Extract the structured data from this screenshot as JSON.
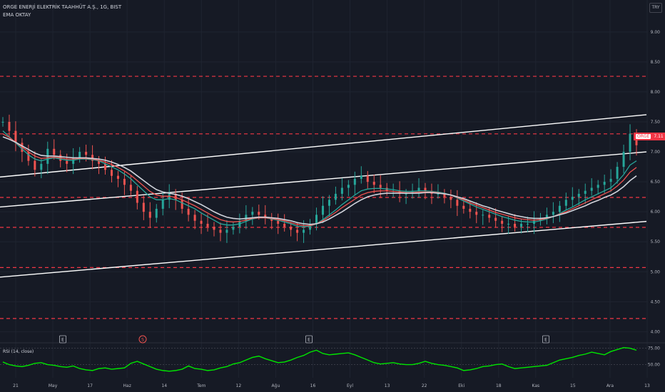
{
  "header": {
    "title": "ORGE ENERJİ ELEKTRİK TAAHHÜT A.Ş., 1G, BIST",
    "indicator": "EMA OKTAY",
    "currency": "TRY"
  },
  "price_tag": {
    "symbol": "ORGE",
    "value": "7.11"
  },
  "rsi": {
    "label": "RSI (14, close)"
  },
  "events": [
    {
      "label": "E",
      "type": "earnings",
      "x": "Mayıs"
    },
    {
      "label": "S",
      "type": "split",
      "x": "Haz-10"
    },
    {
      "label": "E",
      "type": "earnings",
      "x": "Ağu-10"
    },
    {
      "label": "E",
      "type": "earnings",
      "x": "Kas-06"
    }
  ],
  "colors": {
    "background": "#161a25",
    "grid": "#1f2430",
    "up": "#26a69a",
    "down": "#ef5350",
    "level_line": "#f23645",
    "channel": "#ffffff",
    "ema_fast": "#26a69a",
    "ema_mid": "#ef5350",
    "ema_slow": "#d1d4dc",
    "rsi": "#00e600",
    "text": "#b2b5be"
  },
  "chart_data": [
    {
      "type": "line",
      "title": "ORGE ENERJİ ELEKTRİK TAAHHÜT A.Ş., 1G, BIST",
      "xlabel": "",
      "ylabel": "",
      "x_ticks": [
        "21",
        "May",
        "17",
        "Haz",
        "14",
        "Tem",
        "12",
        "Ağu",
        "16",
        "Eyl",
        "13",
        "22",
        "Eki",
        "18",
        "Kas",
        "15",
        "Ara",
        "13"
      ],
      "y_ticks": [
        "9.00",
        "8.50",
        "8.00",
        "7.50",
        "7.00",
        "6.50",
        "6.00",
        "5.50",
        "5.00",
        "4.50",
        "4.00"
      ],
      "ylim": [
        3.85,
        9.2
      ],
      "close": [
        7.5,
        7.35,
        7.15,
        7.0,
        6.85,
        6.7,
        6.8,
        7.05,
        6.95,
        6.85,
        6.8,
        6.9,
        7.0,
        6.95,
        6.85,
        6.8,
        6.7,
        6.6,
        6.55,
        6.45,
        6.35,
        6.15,
        6.0,
        5.9,
        6.05,
        6.2,
        6.3,
        6.2,
        6.05,
        5.95,
        5.85,
        5.8,
        5.75,
        5.7,
        5.65,
        5.7,
        5.75,
        5.85,
        5.95,
        6.0,
        5.95,
        5.9,
        5.85,
        5.8,
        5.75,
        5.7,
        5.65,
        5.7,
        5.8,
        5.95,
        6.1,
        6.2,
        6.3,
        6.4,
        6.45,
        6.55,
        6.6,
        6.5,
        6.45,
        6.4,
        6.35,
        6.35,
        6.3,
        6.3,
        6.35,
        6.4,
        6.35,
        6.3,
        6.3,
        6.25,
        6.2,
        6.1,
        6.05,
        6.0,
        5.95,
        5.95,
        5.9,
        5.85,
        5.8,
        5.8,
        5.75,
        5.8,
        5.8,
        5.85,
        5.9,
        5.95,
        6.0,
        6.1,
        6.2,
        6.25,
        6.3,
        6.35,
        6.4,
        6.45,
        6.5,
        6.55,
        6.75,
        7.0,
        7.3,
        7.11
      ],
      "series": [
        {
          "name": "EMA fast",
          "color": "#26a69a",
          "values": [
            7.35,
            7.25,
            7.15,
            7.05,
            6.95,
            6.88,
            6.85,
            6.88,
            6.9,
            6.88,
            6.86,
            6.86,
            6.88,
            6.88,
            6.87,
            6.85,
            6.8,
            6.75,
            6.7,
            6.63,
            6.55,
            6.45,
            6.35,
            6.25,
            6.2,
            6.2,
            6.22,
            6.2,
            6.15,
            6.1,
            6.05,
            5.98,
            5.92,
            5.86,
            5.8,
            5.78,
            5.78,
            5.8,
            5.84,
            5.88,
            5.9,
            5.9,
            5.88,
            5.86,
            5.83,
            5.8,
            5.76,
            5.75,
            5.76,
            5.8,
            5.87,
            5.95,
            6.03,
            6.12,
            6.2,
            6.28,
            6.35,
            6.38,
            6.39,
            6.39,
            6.38,
            6.37,
            6.35,
            6.34,
            6.34,
            6.35,
            6.35,
            6.34,
            6.33,
            6.31,
            6.28,
            6.23,
            6.18,
            6.13,
            6.08,
            6.04,
            6.0,
            5.96,
            5.92,
            5.89,
            5.86,
            5.84,
            5.83,
            5.83,
            5.85,
            5.88,
            5.92,
            5.97,
            6.03,
            6.08,
            6.14,
            6.2,
            6.25,
            6.3,
            6.35,
            6.4,
            6.5,
            6.62,
            6.78,
            6.85
          ]
        },
        {
          "name": "EMA mid",
          "color": "#ef5350",
          "values": [
            7.3,
            7.24,
            7.16,
            7.08,
            7.0,
            6.93,
            6.89,
            6.9,
            6.91,
            6.9,
            6.88,
            6.88,
            6.89,
            6.89,
            6.88,
            6.86,
            6.83,
            6.79,
            6.74,
            6.68,
            6.61,
            6.52,
            6.43,
            6.34,
            6.28,
            6.26,
            6.26,
            6.24,
            6.2,
            6.15,
            6.1,
            6.04,
            5.98,
            5.92,
            5.87,
            5.84,
            5.83,
            5.84,
            5.86,
            5.89,
            5.9,
            5.9,
            5.89,
            5.87,
            5.85,
            5.82,
            5.79,
            5.77,
            5.77,
            5.8,
            5.85,
            5.92,
            5.99,
            6.07,
            6.14,
            6.21,
            6.28,
            6.32,
            6.34,
            6.35,
            6.35,
            6.34,
            6.33,
            6.32,
            6.32,
            6.33,
            6.33,
            6.33,
            6.32,
            6.3,
            6.28,
            6.24,
            6.2,
            6.15,
            6.11,
            6.07,
            6.03,
            5.99,
            5.96,
            5.93,
            5.9,
            5.88,
            5.87,
            5.86,
            5.87,
            5.89,
            5.92,
            5.96,
            6.0,
            6.05,
            6.1,
            6.15,
            6.2,
            6.25,
            6.3,
            6.35,
            6.43,
            6.53,
            6.66,
            6.74
          ]
        },
        {
          "name": "EMA slow",
          "color": "#d1d4dc",
          "values": [
            7.25,
            7.21,
            7.16,
            7.1,
            7.04,
            6.98,
            6.94,
            6.93,
            6.93,
            6.92,
            6.91,
            6.9,
            6.9,
            6.9,
            6.89,
            6.88,
            6.86,
            6.83,
            6.79,
            6.74,
            6.68,
            6.6,
            6.52,
            6.44,
            6.37,
            6.33,
            6.31,
            6.29,
            6.26,
            6.22,
            6.17,
            6.12,
            6.06,
            6.0,
            5.95,
            5.91,
            5.89,
            5.88,
            5.89,
            5.9,
            5.91,
            5.91,
            5.9,
            5.89,
            5.87,
            5.85,
            5.82,
            5.8,
            5.79,
            5.8,
            5.83,
            5.88,
            5.94,
            6.0,
            6.07,
            6.14,
            6.2,
            6.25,
            6.28,
            6.3,
            6.31,
            6.31,
            6.31,
            6.31,
            6.31,
            6.31,
            6.32,
            6.32,
            6.31,
            6.3,
            6.28,
            6.25,
            6.22,
            6.18,
            6.14,
            6.1,
            6.07,
            6.03,
            6.0,
            5.97,
            5.94,
            5.92,
            5.9,
            5.89,
            5.89,
            5.9,
            5.92,
            5.95,
            5.98,
            6.02,
            6.06,
            6.1,
            6.15,
            6.19,
            6.24,
            6.28,
            6.34,
            6.42,
            6.52,
            6.6
          ]
        }
      ],
      "horizontal_levels": [
        8.26,
        7.3,
        6.24,
        5.74,
        5.07,
        4.22
      ],
      "channel_lines": [
        {
          "from": [
            0,
            6.58
          ],
          "to": [
            99,
            7.62
          ]
        },
        {
          "from": [
            0,
            6.08
          ],
          "to": [
            99,
            7.0
          ]
        },
        {
          "from": [
            0,
            4.91
          ],
          "to": [
            99,
            5.84
          ]
        }
      ]
    },
    {
      "type": "line",
      "title": "RSI (14, close)",
      "xlabel": "",
      "ylabel": "",
      "y_ticks": [
        "75.00",
        "50.00"
      ],
      "ylim": [
        30,
        80
      ],
      "series": [
        {
          "name": "RSI",
          "color": "#00e600",
          "values": [
            54,
            50,
            48,
            47,
            49,
            52,
            53,
            50,
            49,
            47,
            46,
            48,
            44,
            42,
            41,
            44,
            45,
            43,
            44,
            45,
            52,
            55,
            51,
            47,
            43,
            41,
            40,
            41,
            43,
            48,
            44,
            43,
            41,
            42,
            45,
            47,
            51,
            53,
            57,
            61,
            63,
            59,
            56,
            53,
            54,
            57,
            61,
            64,
            69,
            72,
            67,
            65,
            66,
            67,
            68,
            65,
            61,
            57,
            53,
            51,
            52,
            53,
            51,
            50,
            50,
            52,
            55,
            52,
            50,
            49,
            47,
            45,
            41,
            42,
            44,
            47,
            48,
            50,
            51,
            47,
            44,
            45,
            46,
            47,
            48,
            49,
            53,
            57,
            59,
            61,
            64,
            66,
            69,
            67,
            65,
            70,
            73,
            76,
            75,
            72
          ]
        }
      ]
    }
  ]
}
